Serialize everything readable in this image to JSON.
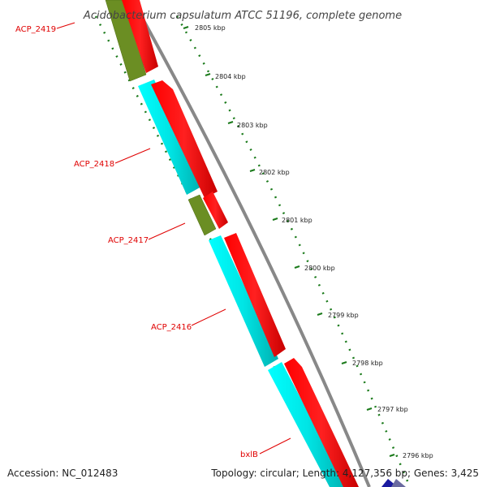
{
  "title": "Acidobacterium capsulatum ATCC 51196, complete genome",
  "footer": {
    "accession": "Accession: NC_012483",
    "summary": "Topology: circular; Length: 4,127,356 bp; Genes: 3,425"
  },
  "colors": {
    "forward_cds": "#ff0000",
    "reverse_cds_cyan": "#00e5e5",
    "reverse_cds_olive": "#6b8e23",
    "backbone": "#888888",
    "tick": "#1a7a1a",
    "label": "#e00000",
    "dark_blue": "#1a1aa0"
  },
  "ticks": [
    "2805 kbp",
    "2804 kbp",
    "2803 kbp",
    "2802 kbp",
    "2801 kbp",
    "2800 kbp",
    "2799 kbp",
    "2798 kbp",
    "2797 kbp",
    "2796 kbp"
  ],
  "genes": [
    {
      "label": "ACP_2419"
    },
    {
      "label": "ACP_2418"
    },
    {
      "label": "ACP_2417"
    },
    {
      "label": "ACP_2416"
    },
    {
      "label": "bxlB"
    }
  ]
}
